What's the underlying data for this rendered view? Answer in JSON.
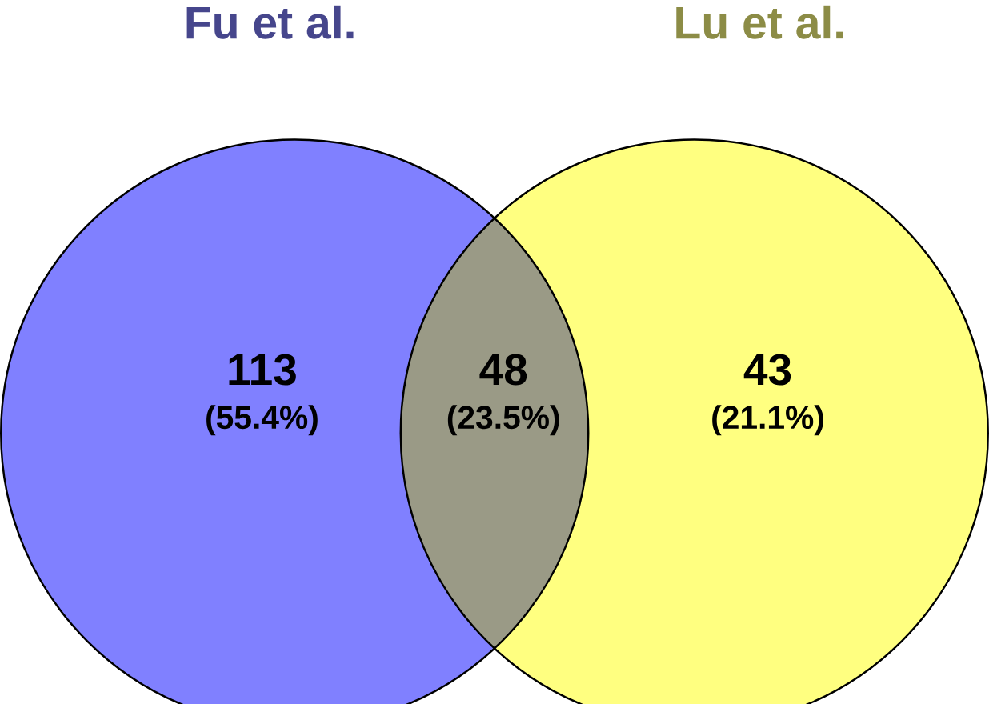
{
  "chart_data": {
    "type": "other",
    "categories": [
      null,
      null,
      null
    ],
    "values": [
      113,
      48,
      43
    ],
    "colors": [
      "#8080ff",
      "#9a9a86",
      "#ffff80"
    ],
    "data_labels": true,
    "annotations": [
      "Fu et al.",
      "Lu et al.",
      "(55.4%)",
      "(23.5%)",
      "(21.1%)"
    ]
  }
}
